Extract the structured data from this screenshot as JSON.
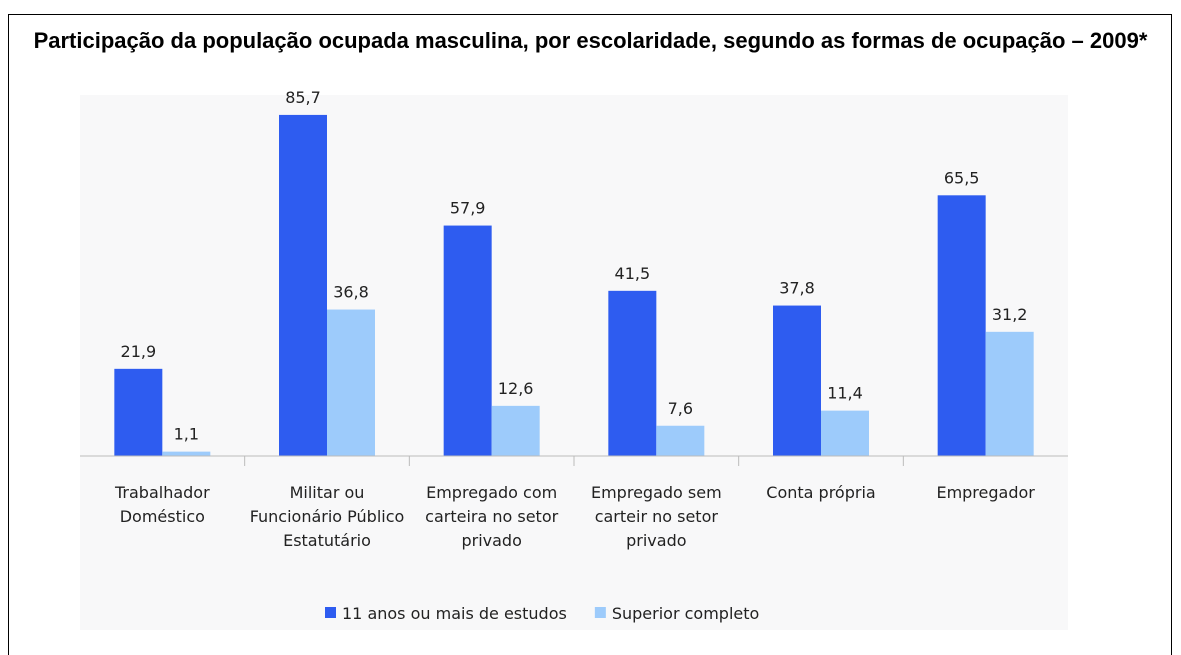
{
  "chart_data": {
    "type": "bar",
    "title": "Participação da população ocupada masculina, por escolaridade, segundo as formas de ocupação – 2009*",
    "categories": [
      [
        "Trabalhador",
        "Doméstico"
      ],
      [
        "Militar ou",
        "Funcionário Público",
        "Estatutário"
      ],
      [
        "Empregado com",
        "carteira no setor",
        "privado"
      ],
      [
        "Empregado sem",
        "carteir no setor",
        "privado"
      ],
      [
        "Conta própria"
      ],
      [
        "Empregador"
      ]
    ],
    "series": [
      {
        "name": "11 anos ou mais de estudos",
        "color": "#2e5cf0",
        "values": [
          21.9,
          85.7,
          57.9,
          41.5,
          37.8,
          65.5
        ],
        "value_labels": [
          "21,9",
          "85,7",
          "57,9",
          "41,5",
          "37,8",
          "65,5"
        ]
      },
      {
        "name": "Superior completo",
        "color": "#9dcbfb",
        "values": [
          1.1,
          36.8,
          12.6,
          7.6,
          11.4,
          31.2
        ],
        "value_labels": [
          "1,1",
          "36,8",
          "12,6",
          "7,6",
          "11,4",
          "31,2"
        ]
      }
    ]
  }
}
